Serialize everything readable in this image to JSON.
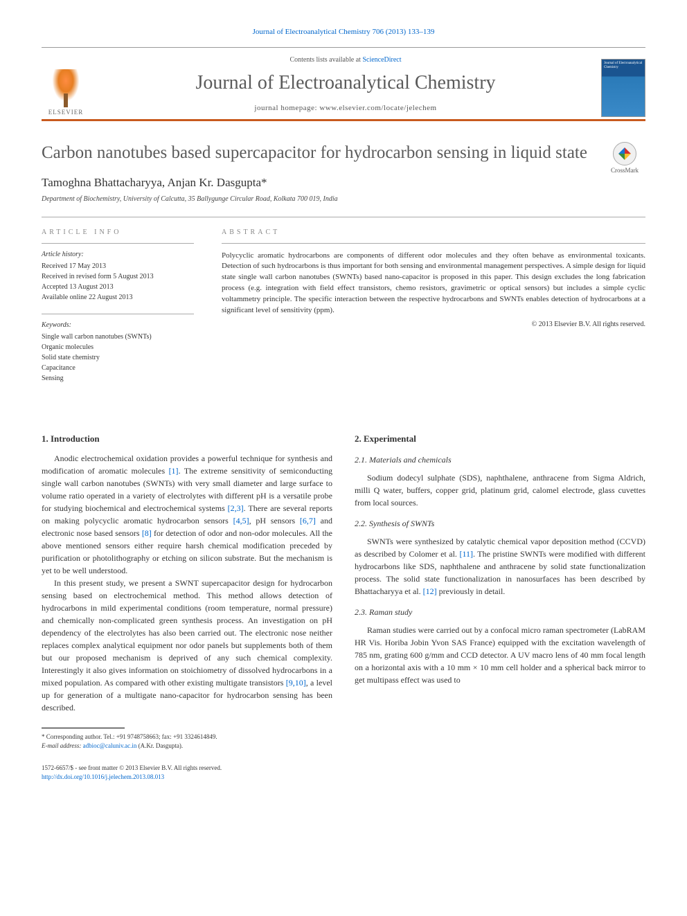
{
  "journal_ref": {
    "prefix": "Journal of Electroanalytical Chemistry 706 (2013) 133–139",
    "link_text": "Journal of Electroanalytical Chemistry"
  },
  "header": {
    "contents_prefix": "Contents lists available at ",
    "contents_link": "ScienceDirect",
    "journal_title": "Journal of Electroanalytical Chemistry",
    "homepage": "journal homepage: www.elsevier.com/locate/jelechem",
    "elsevier_label": "ELSEVIER",
    "cover_text": "Journal of\nElectroanalytical\nChemistry"
  },
  "article": {
    "title": "Carbon nanotubes based supercapacitor for hydrocarbon sensing in liquid state",
    "crossmark_label": "CrossMark",
    "authors": "Tamoghna Bhattacharyya, Anjan Kr. Dasgupta",
    "author_mark": "*",
    "affiliation": "Department of Biochemistry, University of Calcutta, 35 Ballygunge Circular Road, Kolkata 700 019, India"
  },
  "info": {
    "label": "ARTICLE INFO",
    "history_heading": "Article history:",
    "history": [
      "Received 17 May 2013",
      "Received in revised form 5 August 2013",
      "Accepted 13 August 2013",
      "Available online 22 August 2013"
    ],
    "keywords_heading": "Keywords:",
    "keywords": [
      "Single wall carbon nanotubes (SWNTs)",
      "Organic molecules",
      "Solid state chemistry",
      "Capacitance",
      "Sensing"
    ]
  },
  "abstract": {
    "label": "ABSTRACT",
    "text": "Polycyclic aromatic hydrocarbons are components of different odor molecules and they often behave as environmental toxicants. Detection of such hydrocarbons is thus important for both sensing and environmental management perspectives. A simple design for liquid state single wall carbon nanotubes (SWNTs) based nano-capacitor is proposed in this paper. This design excludes the long fabrication process (e.g. integration with field effect transistors, chemo resistors, gravimetric or optical sensors) but includes a simple cyclic voltammetry principle. The specific interaction between the respective hydrocarbons and SWNTs enables detection of hydrocarbons at a significant level of sensitivity (ppm).",
    "copyright": "© 2013 Elsevier B.V. All rights reserved."
  },
  "body": {
    "s1_title": "1. Introduction",
    "s1_p1a": "Anodic electrochemical oxidation provides a powerful technique for synthesis and modification of aromatic molecules ",
    "s1_r1": "[1]",
    "s1_p1b": ". The extreme sensitivity of semiconducting single wall carbon nanotubes (SWNTs) with very small diameter and large surface to volume ratio operated in a variety of electrolytes with different pH is a versatile probe for studying biochemical and electrochemical systems ",
    "s1_r2": "[2,3]",
    "s1_p1c": ". There are several reports on making polycyclic aromatic hydrocarbon sensors ",
    "s1_r3": "[4,5]",
    "s1_p1d": ", pH sensors ",
    "s1_r4": "[6,7]",
    "s1_p1e": " and electronic nose based sensors ",
    "s1_r5": "[8]",
    "s1_p1f": " for detection of odor and non-odor molecules. All the above mentioned sensors either require harsh chemical modification preceded by purification or photolithography or etching on silicon substrate. But the mechanism is yet to be well understood.",
    "s1_p2a": "In this present study, we present a SWNT supercapacitor design for hydrocarbon sensing based on electrochemical method. This method allows detection of hydrocarbons in mild experimental conditions (room temperature, normal pressure) and chemically non-complicated green synthesis process. An investigation on pH dependency of the electrolytes has also been carried out. The electronic nose neither replaces complex analytical equipment nor odor panels but supplements both of them but our proposed mechanism is deprived of any such chemical complexity. Interestingly it also gives information on stoichiometry of dissolved hydrocarbons in a mixed population. As compared with other existing multigate transistors ",
    "s1_r6": "[9,10]",
    "s1_p2b": ", a level up for generation of a multigate nano-capacitor for hydrocarbon sensing has been described.",
    "s2_title": "2. Experimental",
    "s21_title": "2.1. Materials and chemicals",
    "s21_p1": "Sodium dodecyl sulphate (SDS), naphthalene, anthracene from Sigma Aldrich, milli Q water, buffers, copper grid, platinum grid, calomel electrode, glass cuvettes from local sources.",
    "s22_title": "2.2. Synthesis of SWNTs",
    "s22_p1a": "SWNTs were synthesized by catalytic chemical vapor deposition method (CCVD) as described by Colomer et al. ",
    "s22_r1": "[11]",
    "s22_p1b": ". The pristine SWNTs were modified with different hydrocarbons like SDS, naphthalene and anthracene by solid state functionalization process. The solid state functionalization in nanosurfaces has been described by Bhattacharyya et al. ",
    "s22_r2": "[12]",
    "s22_p1c": " previously in detail.",
    "s23_title": "2.3. Raman study",
    "s23_p1": "Raman studies were carried out by a confocal micro raman spectrometer (LabRAM HR Vis. Horiba Jobin Yvon SAS France) equipped with the excitation wavelength of 785 nm, grating 600 g/mm and CCD detector. A UV macro lens of 40 mm focal length on a horizontal axis with a 10 mm × 10 mm cell holder and a spherical back mirror to get multipass effect was used to"
  },
  "footnote": {
    "corresponding": "* Corresponding author. Tel.: +91 9748758663; fax: +91 3324614849.",
    "email_label": "E-mail address: ",
    "email": "adbioc@caluniv.ac.in",
    "email_suffix": " (A.Kr. Dasgupta)."
  },
  "footer": {
    "line1": "1572-6657/$ - see front matter © 2013 Elsevier B.V. All rights reserved.",
    "doi": "http://dx.doi.org/10.1016/j.jelechem.2013.08.013"
  }
}
